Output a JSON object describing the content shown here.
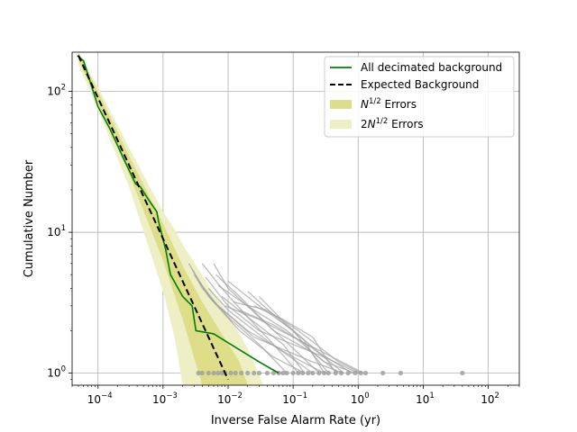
{
  "chart_data": {
    "type": "line",
    "xlabel": "Inverse False Alarm Rate (yr)",
    "ylabel": "Cumulative Number",
    "xscale": "log",
    "yscale": "log",
    "xlim": [
      4e-05,
      300
    ],
    "ylim": [
      0.82,
      190
    ],
    "grid": true,
    "legend_placement": "top-right",
    "x_ticks": [
      {
        "value": 0.0001,
        "base": "10",
        "exp": "−4"
      },
      {
        "value": 0.001,
        "base": "10",
        "exp": "−3"
      },
      {
        "value": 0.01,
        "base": "10",
        "exp": "−2"
      },
      {
        "value": 0.1,
        "base": "10",
        "exp": "−1"
      },
      {
        "value": 1,
        "base": "10",
        "exp": "0"
      },
      {
        "value": 10,
        "base": "10",
        "exp": "1"
      },
      {
        "value": 100,
        "base": "10",
        "exp": "2"
      }
    ],
    "y_ticks": [
      {
        "value": 1,
        "base": "10",
        "exp": "0"
      },
      {
        "value": 10,
        "base": "10",
        "exp": "1"
      },
      {
        "value": 100,
        "base": "10",
        "exp": "2"
      }
    ],
    "legend": [
      {
        "key": "decimated",
        "label": "All decimated background"
      },
      {
        "key": "expected",
        "label": "Expected Background"
      },
      {
        "key": "err1",
        "label_prefix": "N",
        "label_sup": "1/2",
        "label_suffix": " Errors"
      },
      {
        "key": "err2",
        "label_prefix": "2N",
        "label_sup": "1/2",
        "label_suffix": " Errors"
      }
    ],
    "colors": {
      "decimated": "#008000",
      "expected": "#000000",
      "err1": "#dede8a",
      "err2": "#efefc5",
      "background_traces": "#a0a0a0",
      "grid": "#b0b0b0"
    },
    "expected_background": [
      {
        "x": 5e-05,
        "y": 180
      },
      {
        "x": 0.01,
        "y": 0.9
      }
    ],
    "all_decimated_background": [
      {
        "x": 4.8e-05,
        "y": 180
      },
      {
        "x": 6e-05,
        "y": 165
      },
      {
        "x": 0.0001,
        "y": 78
      },
      {
        "x": 0.00015,
        "y": 55
      },
      {
        "x": 0.00025,
        "y": 33
      },
      {
        "x": 0.00038,
        "y": 22
      },
      {
        "x": 0.00045,
        "y": 21
      },
      {
        "x": 0.0006,
        "y": 17
      },
      {
        "x": 0.0008,
        "y": 14
      },
      {
        "x": 0.00085,
        "y": 12
      },
      {
        "x": 0.0011,
        "y": 7.5
      },
      {
        "x": 0.0013,
        "y": 5
      },
      {
        "x": 0.002,
        "y": 3.5
      },
      {
        "x": 0.0028,
        "y": 3
      },
      {
        "x": 0.0032,
        "y": 2
      },
      {
        "x": 0.006,
        "y": 1.9
      },
      {
        "x": 0.03,
        "y": 1.2
      },
      {
        "x": 0.06,
        "y": 1
      }
    ],
    "band_1sigma": [
      {
        "x": 5e-05,
        "lo": 167,
        "hi": 193
      },
      {
        "x": 0.0001,
        "lo": 83,
        "hi": 100
      },
      {
        "x": 0.0003,
        "lo": 26,
        "hi": 35
      },
      {
        "x": 0.001,
        "lo": 6.3,
        "hi": 11.5
      },
      {
        "x": 0.002,
        "lo": 2.4,
        "hi": 5.8
      },
      {
        "x": 0.004,
        "lo": 0.82,
        "hi": 3.2
      },
      {
        "x": 0.008,
        "lo": 0.82,
        "hi": 1.9
      },
      {
        "x": 0.015,
        "lo": 0.82,
        "hi": 1.2
      },
      {
        "x": 0.02,
        "lo": 0.82,
        "hi": 0.82
      }
    ],
    "band_2sigma": [
      {
        "x": 5e-05,
        "lo": 155,
        "hi": 205
      },
      {
        "x": 0.0001,
        "lo": 74,
        "hi": 108
      },
      {
        "x": 0.0003,
        "lo": 21,
        "hi": 40
      },
      {
        "x": 0.001,
        "lo": 3.8,
        "hi": 14
      },
      {
        "x": 0.0015,
        "lo": 1.8,
        "hi": 10.5
      },
      {
        "x": 0.002,
        "lo": 0.82,
        "hi": 8.2
      },
      {
        "x": 0.005,
        "lo": 0.82,
        "hi": 4.2
      },
      {
        "x": 0.01,
        "lo": 0.82,
        "hi": 2.6
      },
      {
        "x": 0.02,
        "lo": 0.82,
        "hi": 1.5
      },
      {
        "x": 0.035,
        "lo": 0.82,
        "hi": 0.82
      }
    ],
    "background_traces": [
      [
        {
          "x": 0.0025,
          "y": 6
        },
        {
          "x": 0.004,
          "y": 4
        },
        {
          "x": 0.01,
          "y": 2.5
        },
        {
          "x": 0.03,
          "y": 1.6
        },
        {
          "x": 0.08,
          "y": 1
        }
      ],
      [
        {
          "x": 0.0028,
          "y": 5.5
        },
        {
          "x": 0.005,
          "y": 3.5
        },
        {
          "x": 0.015,
          "y": 2
        },
        {
          "x": 0.05,
          "y": 1.3
        },
        {
          "x": 0.15,
          "y": 1
        }
      ],
      [
        {
          "x": 0.003,
          "y": 5
        },
        {
          "x": 0.006,
          "y": 3.2
        },
        {
          "x": 0.02,
          "y": 2
        },
        {
          "x": 0.1,
          "y": 1.3
        },
        {
          "x": 0.3,
          "y": 1
        }
      ],
      [
        {
          "x": 0.0035,
          "y": 4.5
        },
        {
          "x": 0.007,
          "y": 3
        },
        {
          "x": 0.025,
          "y": 1.8
        },
        {
          "x": 0.2,
          "y": 1.2
        },
        {
          "x": 0.6,
          "y": 1
        }
      ],
      [
        {
          "x": 0.004,
          "y": 6
        },
        {
          "x": 0.008,
          "y": 4
        },
        {
          "x": 0.02,
          "y": 2.5
        },
        {
          "x": 0.05,
          "y": 1.6
        },
        {
          "x": 0.12,
          "y": 1
        }
      ],
      [
        {
          "x": 0.0045,
          "y": 4.8
        },
        {
          "x": 0.01,
          "y": 3
        },
        {
          "x": 0.03,
          "y": 2
        },
        {
          "x": 0.3,
          "y": 1.3
        },
        {
          "x": 1,
          "y": 1
        }
      ],
      [
        {
          "x": 0.005,
          "y": 4
        },
        {
          "x": 0.01,
          "y": 2.8
        },
        {
          "x": 0.04,
          "y": 1.7
        },
        {
          "x": 0.2,
          "y": 1
        }
      ],
      [
        {
          "x": 0.006,
          "y": 6
        },
        {
          "x": 0.01,
          "y": 4
        },
        {
          "x": 0.03,
          "y": 2.5
        },
        {
          "x": 0.1,
          "y": 1.5
        },
        {
          "x": 0.25,
          "y": 1
        }
      ],
      [
        {
          "x": 0.0065,
          "y": 5
        },
        {
          "x": 0.015,
          "y": 3.5
        },
        {
          "x": 0.05,
          "y": 2
        },
        {
          "x": 0.2,
          "y": 1.4
        },
        {
          "x": 0.5,
          "y": 1
        }
      ],
      [
        {
          "x": 0.007,
          "y": 4.2
        },
        {
          "x": 0.02,
          "y": 3
        },
        {
          "x": 0.08,
          "y": 2
        },
        {
          "x": 0.3,
          "y": 1.2
        },
        {
          "x": 0.9,
          "y": 1
        }
      ],
      [
        {
          "x": 0.008,
          "y": 3.5
        },
        {
          "x": 0.02,
          "y": 2.5
        },
        {
          "x": 0.07,
          "y": 1.6
        },
        {
          "x": 0.15,
          "y": 1
        }
      ],
      [
        {
          "x": 0.009,
          "y": 3
        },
        {
          "x": 0.03,
          "y": 2.4
        },
        {
          "x": 0.1,
          "y": 1.8
        },
        {
          "x": 0.4,
          "y": 1.3
        },
        {
          "x": 1.2,
          "y": 1
        }
      ],
      [
        {
          "x": 0.01,
          "y": 4.5
        },
        {
          "x": 0.03,
          "y": 3
        },
        {
          "x": 0.1,
          "y": 2
        },
        {
          "x": 0.35,
          "y": 1
        }
      ],
      [
        {
          "x": 0.012,
          "y": 3.2
        },
        {
          "x": 0.04,
          "y": 2.8
        },
        {
          "x": 0.12,
          "y": 2
        },
        {
          "x": 0.5,
          "y": 1.2
        },
        {
          "x": 1.1,
          "y": 1
        }
      ],
      [
        {
          "x": 0.015,
          "y": 2.8
        },
        {
          "x": 0.05,
          "y": 2.2
        },
        {
          "x": 0.2,
          "y": 1.5
        },
        {
          "x": 0.6,
          "y": 1
        }
      ],
      [
        {
          "x": 0.02,
          "y": 3.8
        },
        {
          "x": 0.05,
          "y": 2.6
        },
        {
          "x": 0.15,
          "y": 1.7
        },
        {
          "x": 0.3,
          "y": 1
        }
      ],
      [
        {
          "x": 0.025,
          "y": 3
        },
        {
          "x": 0.07,
          "y": 2.4
        },
        {
          "x": 0.2,
          "y": 1.8
        },
        {
          "x": 0.45,
          "y": 1
        }
      ],
      [
        {
          "x": 0.03,
          "y": 3.5
        },
        {
          "x": 0.08,
          "y": 2.2
        },
        {
          "x": 0.25,
          "y": 1.4
        },
        {
          "x": 0.8,
          "y": 1
        }
      ]
    ],
    "loudest_points_x": [
      0.0035,
      0.004,
      0.005,
      0.006,
      0.007,
      0.008,
      0.009,
      0.011,
      0.013,
      0.016,
      0.02,
      0.025,
      0.03,
      0.04,
      0.05,
      0.06,
      0.07,
      0.08,
      0.1,
      0.12,
      0.14,
      0.17,
      0.2,
      0.25,
      0.3,
      0.35,
      0.45,
      0.55,
      0.7,
      0.9,
      1.1,
      1.3,
      2.4,
      4.5,
      40
    ],
    "loudest_points_y": 1
  }
}
